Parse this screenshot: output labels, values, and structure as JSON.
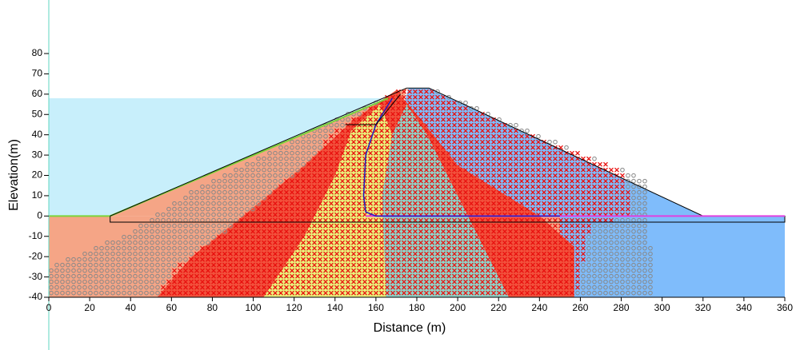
{
  "chart_data": {
    "type": "cross-section",
    "xlabel": "Distance (m)",
    "ylabel": "Elevation(m)",
    "xlim": [
      0,
      360
    ],
    "ylim": [
      -40,
      80
    ],
    "xticks": [
      0,
      20,
      40,
      60,
      80,
      100,
      120,
      140,
      160,
      180,
      200,
      220,
      240,
      260,
      280,
      300,
      320,
      340,
      360
    ],
    "yticks": [
      -40,
      -30,
      -20,
      -10,
      0,
      10,
      20,
      30,
      40,
      50,
      60,
      70,
      80
    ]
  }
}
